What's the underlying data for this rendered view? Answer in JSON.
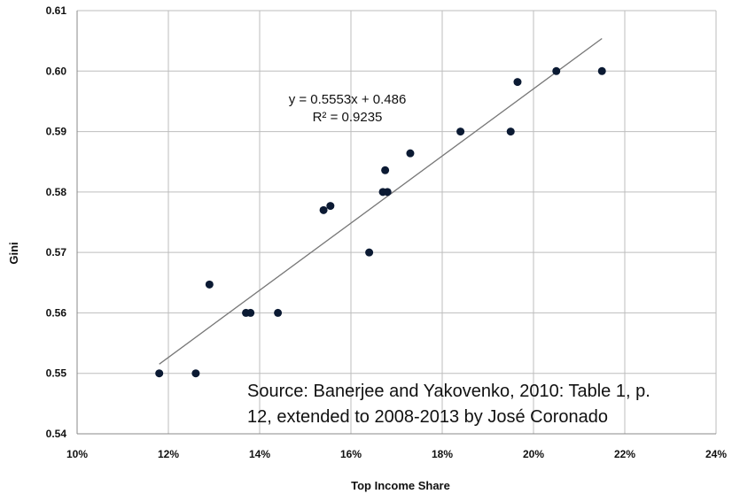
{
  "chart_data": {
    "type": "scatter",
    "xlabel": "Top Income Share",
    "ylabel": "Gini",
    "xlim": [
      0.1,
      0.24
    ],
    "ylim": [
      0.54,
      0.61
    ],
    "x_ticks": [
      "10%",
      "12%",
      "14%",
      "16%",
      "18%",
      "20%",
      "22%",
      "24%"
    ],
    "x_tick_values": [
      0.1,
      0.12,
      0.14,
      0.16,
      0.18,
      0.2,
      0.22,
      0.24
    ],
    "y_ticks": [
      "0.54",
      "0.55",
      "0.56",
      "0.57",
      "0.58",
      "0.59",
      "0.60",
      "0.61"
    ],
    "y_tick_values": [
      0.54,
      0.55,
      0.56,
      0.57,
      0.58,
      0.59,
      0.6,
      0.61
    ],
    "grid": true,
    "points": [
      {
        "x": 0.118,
        "y": 0.55
      },
      {
        "x": 0.126,
        "y": 0.55
      },
      {
        "x": 0.129,
        "y": 0.5647
      },
      {
        "x": 0.137,
        "y": 0.56
      },
      {
        "x": 0.138,
        "y": 0.56
      },
      {
        "x": 0.144,
        "y": 0.56
      },
      {
        "x": 0.154,
        "y": 0.577
      },
      {
        "x": 0.1555,
        "y": 0.5777
      },
      {
        "x": 0.164,
        "y": 0.57
      },
      {
        "x": 0.167,
        "y": 0.58
      },
      {
        "x": 0.1675,
        "y": 0.5836
      },
      {
        "x": 0.168,
        "y": 0.58
      },
      {
        "x": 0.173,
        "y": 0.5864
      },
      {
        "x": 0.184,
        "y": 0.59
      },
      {
        "x": 0.195,
        "y": 0.59
      },
      {
        "x": 0.1965,
        "y": 0.5982
      },
      {
        "x": 0.205,
        "y": 0.6
      },
      {
        "x": 0.215,
        "y": 0.6
      }
    ],
    "trendline": {
      "slope": 0.5553,
      "intercept": 0.486,
      "x_start": 0.118,
      "x_end": 0.215
    },
    "annotations": {
      "equation": "y = 0.5553x + 0.486",
      "r_squared": "R² = 0.9235",
      "source_line1": "Source: Banerjee and Yakovenko, 2010: Table 1, p.",
      "source_line2": "12, extended to 2008-2013 by José Coronado"
    },
    "colors": {
      "point": "#0b1a33",
      "trendline": "#777777",
      "grid": "#bdbdbd",
      "axis": "#888888"
    }
  }
}
